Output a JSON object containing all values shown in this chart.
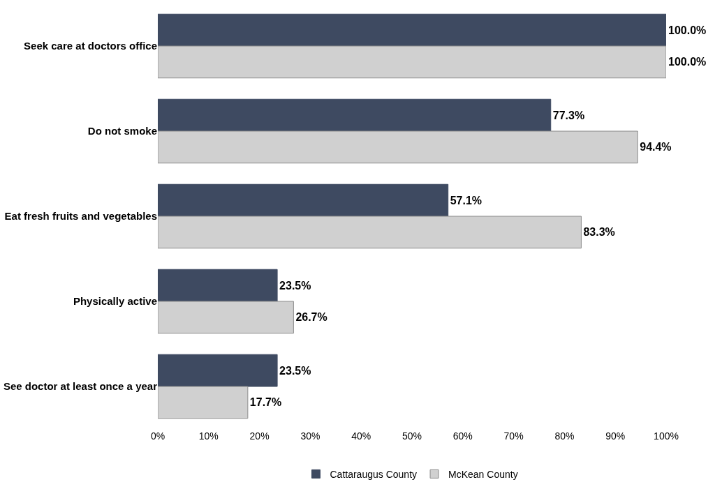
{
  "chart_data": {
    "type": "bar",
    "orientation": "horizontal",
    "categories": [
      "Seek care at doctors office",
      "Do not smoke",
      "Eat fresh fruits and vegetables",
      "Physically active",
      "See doctor at least once a year"
    ],
    "series": [
      {
        "name": "Cattaraugus County",
        "color": "#3e4a61",
        "values": [
          100,
          77.3,
          57.1,
          23.5,
          23.5
        ],
        "value_labels": [
          "100.0%",
          "77.3%",
          "57.1%",
          "23.5%",
          "23.5%"
        ]
      },
      {
        "name": "McKean County",
        "color": "#d0d0d0",
        "values": [
          100,
          94.4,
          83.3,
          26.7,
          17.7
        ],
        "value_labels": [
          "100.0%",
          "94.4%",
          "83.3%",
          "26.7%",
          "17.7%"
        ]
      }
    ],
    "xlim": [
      0,
      100
    ],
    "xticks": [
      {
        "value": 0,
        "label": "0%"
      },
      {
        "value": 10,
        "label": "10%"
      },
      {
        "value": 20,
        "label": "20%"
      },
      {
        "value": 30,
        "label": "30%"
      },
      {
        "value": 40,
        "label": "40%"
      },
      {
        "value": 50,
        "label": "50%"
      },
      {
        "value": 60,
        "label": "60%"
      },
      {
        "value": 70,
        "label": "70%"
      },
      {
        "value": 80,
        "label": "80%"
      },
      {
        "value": 90,
        "label": "90%"
      },
      {
        "value": 100,
        "label": "100%"
      }
    ],
    "legend": "bottom"
  }
}
